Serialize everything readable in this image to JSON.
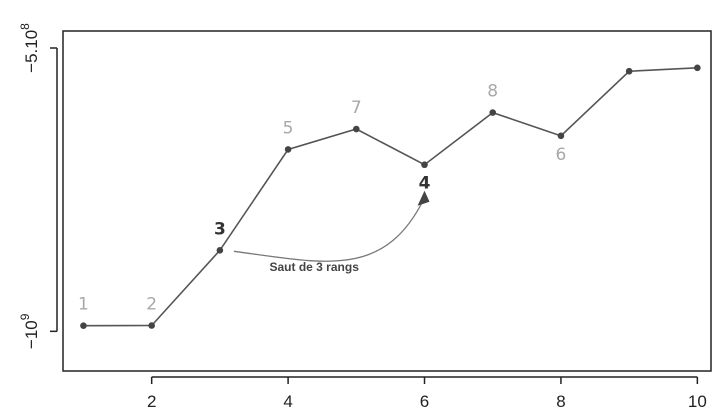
{
  "chart_data": {
    "type": "line",
    "x": [
      1,
      2,
      3,
      4,
      5,
      6,
      7,
      8,
      9,
      10
    ],
    "y": [
      -990000000,
      -989700000,
      -857000000,
      -679000000,
      -643000000,
      -706000000,
      -614000000,
      -655000000,
      -541000000,
      -535000000
    ],
    "point_labels": [
      "1",
      "2",
      "3",
      "5",
      "7",
      "4",
      "8",
      "6",
      "",
      ""
    ],
    "highlighted_labels": [
      "3",
      "4"
    ],
    "label_placement": [
      "above",
      "above",
      "above",
      "above",
      "above",
      "below",
      "above",
      "below",
      "above",
      "above"
    ],
    "xticks": [
      2,
      4,
      6,
      8,
      10
    ],
    "xtick_labels": [
      "2",
      "4",
      "6",
      "8",
      "10"
    ],
    "xlim": [
      0.7,
      10.2
    ],
    "yticks": [
      -500000000,
      -1000000000
    ],
    "ytick_labels": [
      "−5.10",
      "−10"
    ],
    "ytick_superscripts": [
      "8",
      "9"
    ],
    "ylim": [
      -1070000000,
      -470000000
    ],
    "annotation": {
      "text": "Saut de 3 rangs",
      "from_x": 3,
      "to_x": 6
    },
    "grid": false,
    "colors": {
      "line": "#555555",
      "point": "#444444",
      "label": "#a8a8a8",
      "highlight": "#333333",
      "axis": "#222222"
    }
  }
}
